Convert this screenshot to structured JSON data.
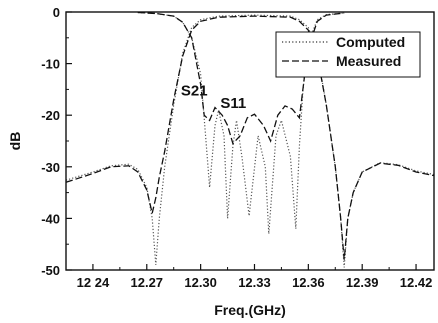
{
  "chart_data": {
    "type": "line",
    "xlabel": "Freq.(GHz)",
    "ylabel": "dB",
    "xlim": [
      12.225,
      12.43
    ],
    "ylim": [
      -50,
      0
    ],
    "xticks": [
      12.24,
      12.27,
      12.3,
      12.33,
      12.36,
      12.39,
      12.42
    ],
    "xtick_labels": [
      "12 24",
      "12.27",
      "12.30",
      "12.33",
      "12.36",
      "12.39",
      "12.42"
    ],
    "yticks": [
      0,
      -10,
      -20,
      -30,
      -40,
      -50
    ],
    "ytick_labels": [
      "0",
      "-10",
      "-20",
      "-30",
      "-40",
      "-50"
    ],
    "grid": false,
    "legend_position": "top-right",
    "annotations": [
      {
        "text": "S21",
        "x": 12.289,
        "y": -16.2
      },
      {
        "text": "S11",
        "x": 12.311,
        "y": -18.6
      }
    ],
    "series": [
      {
        "name": "Computed",
        "style": "dotted",
        "parameter": "S21",
        "x": [
          12.225,
          12.24,
          12.25,
          12.26,
          12.265,
          12.27,
          12.273,
          12.275,
          12.277,
          12.28,
          12.285,
          12.29,
          12.295,
          12.3,
          12.31,
          12.33,
          12.35,
          12.355,
          12.36,
          12.365,
          12.37,
          12.375,
          12.378,
          12.38,
          12.382,
          12.385,
          12.39,
          12.4,
          12.41,
          12.42,
          12.43
        ],
        "y": [
          -32.6,
          -31.0,
          -29.8,
          -29.5,
          -30.5,
          -34.0,
          -40.0,
          -49.0,
          -40.0,
          -30.0,
          -18.0,
          -8.0,
          -3.0,
          -1.5,
          -0.8,
          -0.6,
          -0.8,
          -1.5,
          -3.0,
          -8.0,
          -18.0,
          -30.0,
          -40.0,
          -49.5,
          -40.0,
          -35.0,
          -31.0,
          -29.2,
          -29.6,
          -30.8,
          -31.5
        ]
      },
      {
        "name": "Measured",
        "style": "dashed",
        "parameter": "S21",
        "x": [
          12.225,
          12.24,
          12.25,
          12.26,
          12.265,
          12.27,
          12.273,
          12.275,
          12.277,
          12.28,
          12.285,
          12.29,
          12.295,
          12.3,
          12.31,
          12.33,
          12.35,
          12.355,
          12.36,
          12.365,
          12.37,
          12.375,
          12.378,
          12.38,
          12.382,
          12.385,
          12.39,
          12.4,
          12.41,
          12.42,
          12.43
        ],
        "y": [
          -33.0,
          -31.3,
          -30.0,
          -29.8,
          -31.0,
          -34.5,
          -39.0,
          -36.0,
          -32.0,
          -27.0,
          -17.0,
          -8.5,
          -3.5,
          -1.8,
          -1.0,
          -0.8,
          -1.0,
          -1.8,
          -3.5,
          -8.5,
          -18.0,
          -30.0,
          -40.0,
          -48.0,
          -40.0,
          -35.0,
          -31.0,
          -29.3,
          -29.7,
          -31.0,
          -31.7
        ]
      },
      {
        "name": "Computed",
        "style": "dotted",
        "parameter": "S11",
        "x": [
          12.265,
          12.275,
          12.285,
          12.29,
          12.295,
          12.3,
          12.303,
          12.305,
          12.308,
          12.31,
          12.313,
          12.315,
          12.318,
          12.32,
          12.323,
          12.327,
          12.332,
          12.336,
          12.338,
          12.342,
          12.345,
          12.35,
          12.353,
          12.355,
          12.357,
          12.36,
          12.365,
          12.37,
          12.38
        ],
        "y": [
          -0.1,
          -0.3,
          -0.8,
          -2.0,
          -5.0,
          -12.0,
          -25.0,
          -34.0,
          -22.0,
          -19.0,
          -24.0,
          -40.0,
          -26.0,
          -21.0,
          -28.0,
          -39.5,
          -24.0,
          -30.0,
          -43.0,
          -24.0,
          -21.0,
          -28.0,
          -42.0,
          -26.0,
          -15.0,
          -6.0,
          -1.5,
          -0.5,
          -0.2
        ]
      },
      {
        "name": "Measured",
        "style": "dashed",
        "parameter": "S11",
        "x": [
          12.265,
          12.275,
          12.285,
          12.29,
          12.295,
          12.3,
          12.302,
          12.305,
          12.308,
          12.312,
          12.315,
          12.318,
          12.322,
          12.326,
          12.33,
          12.335,
          12.339,
          12.343,
          12.347,
          12.351,
          12.355,
          12.358,
          12.36,
          12.365,
          12.37,
          12.38
        ],
        "y": [
          -0.1,
          -0.3,
          -0.8,
          -2.0,
          -5.0,
          -14.0,
          -20.0,
          -21.0,
          -18.5,
          -20.0,
          -22.0,
          -25.5,
          -24.0,
          -20.5,
          -19.8,
          -22.0,
          -25.0,
          -20.0,
          -18.2,
          -18.8,
          -20.5,
          -12.0,
          -7.0,
          -1.8,
          -0.6,
          -0.2
        ]
      }
    ]
  }
}
